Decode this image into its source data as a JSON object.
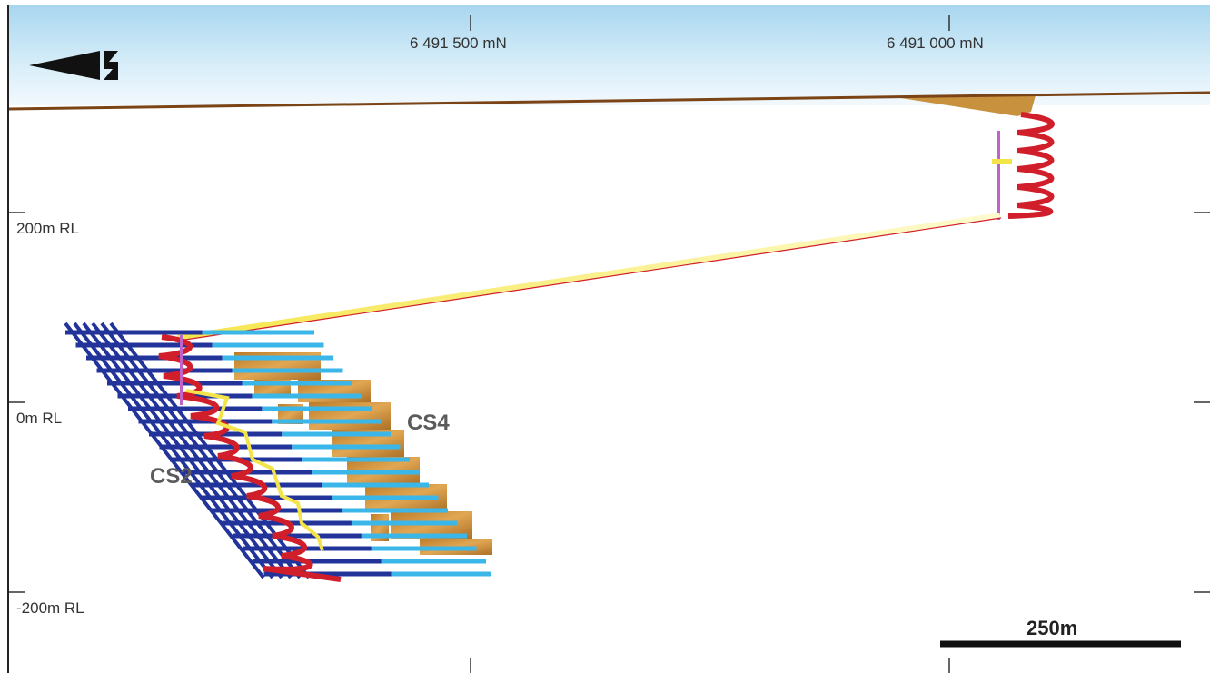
{
  "northings": [
    {
      "label": "6 491 500 mN"
    },
    {
      "label": "6 491 000 mN"
    }
  ],
  "levels": [
    {
      "label": "200m RL"
    },
    {
      "label": "0m RL"
    },
    {
      "label": "-200m RL"
    }
  ],
  "orebodies": [
    {
      "label": "CS4"
    },
    {
      "label": "CS2"
    }
  ],
  "scale_bar": {
    "label": "250m"
  },
  "north_arrow": {
    "label": "N"
  },
  "colors": {
    "surface": "#7a4416",
    "decline": "#d01f2a",
    "shaft": "#c063c8",
    "drive": "#f3e44a",
    "level_dark": "#22349a",
    "level_light": "#3bb6e8",
    "ore": "#c8882e"
  }
}
